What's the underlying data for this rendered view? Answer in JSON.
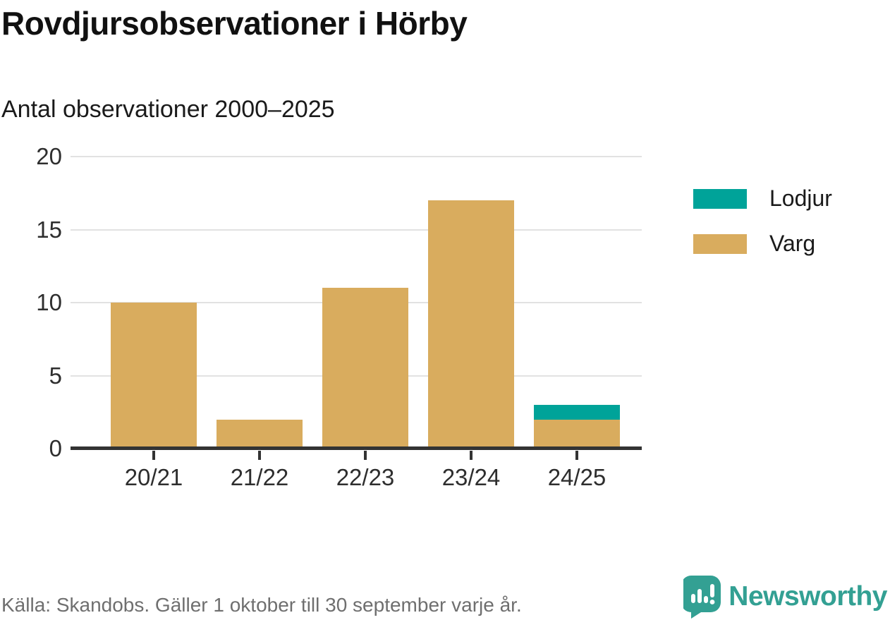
{
  "header": {
    "title": "Rovdjursobservationer i Hörby",
    "subtitle": "Antal observationer 2000–2025"
  },
  "chart_data": {
    "type": "bar",
    "stacked": true,
    "title": "Rovdjursobservationer i Hörby",
    "subtitle": "Antal observationer 2000–2025",
    "categories": [
      "20/21",
      "21/22",
      "22/23",
      "23/24",
      "24/25"
    ],
    "series": [
      {
        "name": "Varg",
        "color": "#d9ac5e",
        "values": [
          10,
          2,
          11,
          17,
          2
        ]
      },
      {
        "name": "Lodjur",
        "color": "#00a399",
        "values": [
          0,
          0,
          0,
          0,
          1
        ]
      }
    ],
    "totals": [
      10,
      2,
      11,
      17,
      3
    ],
    "ylim": [
      0,
      20
    ],
    "yticks": [
      0,
      5,
      10,
      15,
      20
    ],
    "grid": true,
    "legend_position": "right",
    "legend": [
      {
        "label": "Lodjur",
        "color": "#00a399"
      },
      {
        "label": "Varg",
        "color": "#d9ac5e"
      }
    ]
  },
  "colors": {
    "varg": "#d9ac5e",
    "lodjur": "#00a399",
    "axis": "#333333",
    "grid": "#e2e2e2",
    "brand_teal": "#33a093"
  },
  "footer": {
    "source": "Källa: Skandobs. Gäller 1 oktober till 30 september varje år.",
    "brand": "Newsworthy"
  }
}
